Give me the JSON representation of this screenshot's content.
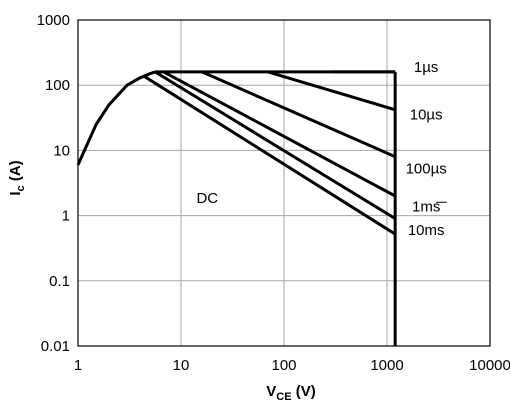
{
  "chart_data": {
    "type": "line",
    "title": "",
    "xlabel": {
      "main": "V",
      "sub": "CE",
      "unit": " (V)"
    },
    "ylabel": {
      "main": "I",
      "sub": "c",
      "unit": " (A)"
    },
    "x_scale": "log",
    "y_scale": "log",
    "xlim": [
      1,
      10000
    ],
    "ylim": [
      0.01,
      1000
    ],
    "grid": true,
    "x_ticks": [
      "1",
      "10",
      "100",
      "1000",
      "10000"
    ],
    "y_ticks": [
      "0.01",
      "0.1",
      "1",
      "10",
      "100",
      "1000"
    ],
    "boundary": {
      "max_current": 160,
      "max_voltage": 1200,
      "knee_curve": {
        "x": [
          1,
          1.5,
          2,
          3,
          4,
          5,
          5.6
        ],
        "y": [
          6,
          25,
          50,
          100,
          130,
          150,
          160
        ]
      }
    },
    "series": [
      {
        "name": "1µs",
        "x": [
          300,
          1200
        ],
        "y": [
          160,
          160
        ]
      },
      {
        "name": "10µs",
        "x": [
          70,
          1200
        ],
        "y": [
          160,
          42
        ]
      },
      {
        "name": "100µs",
        "x": [
          16,
          1200
        ],
        "y": [
          160,
          8
        ]
      },
      {
        "name": "1ms",
        "x": [
          6.8,
          1200
        ],
        "y": [
          160,
          2
        ]
      },
      {
        "name": "10ms",
        "x": [
          5.6,
          1200
        ],
        "y": [
          160,
          0.9
        ]
      },
      {
        "name": "DC",
        "x": [
          4.3,
          1200
        ],
        "y": [
          140,
          0.52
        ]
      }
    ],
    "annotations": [
      {
        "text": "DC",
        "x": 18,
        "y": 1.55
      }
    ]
  }
}
